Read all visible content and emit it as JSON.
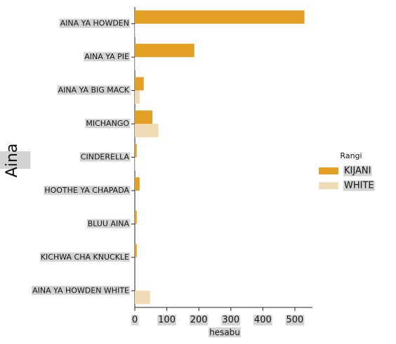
{
  "chart_data": {
    "type": "barh",
    "categories": [
      "AINA YA HOWDEN",
      "AINA YA PIE",
      "AINA YA BIG MACK",
      "MICHANGO",
      "CINDERELLA",
      "HOOTHE YA CHAPADA",
      "BLUU AINA",
      "KICHWA CHA KNUCKLE",
      "AINA YA HOWDEN WHITE"
    ],
    "series": [
      {
        "name": "KIJANI",
        "color": "#e3a024",
        "values": [
          530,
          186,
          28,
          55,
          6,
          15,
          6,
          6,
          0
        ]
      },
      {
        "name": "WHITE",
        "color": "#f0dbb5",
        "values": [
          1,
          2,
          15,
          74,
          1,
          0,
          0,
          0,
          48
        ]
      }
    ],
    "xlim": [
      0,
      555
    ],
    "xticks": [
      0,
      100,
      200,
      300,
      400,
      500
    ],
    "xlabel": "hesabu",
    "ylabel": "Aina",
    "legend_title": "Rangi",
    "legend": "right"
  }
}
